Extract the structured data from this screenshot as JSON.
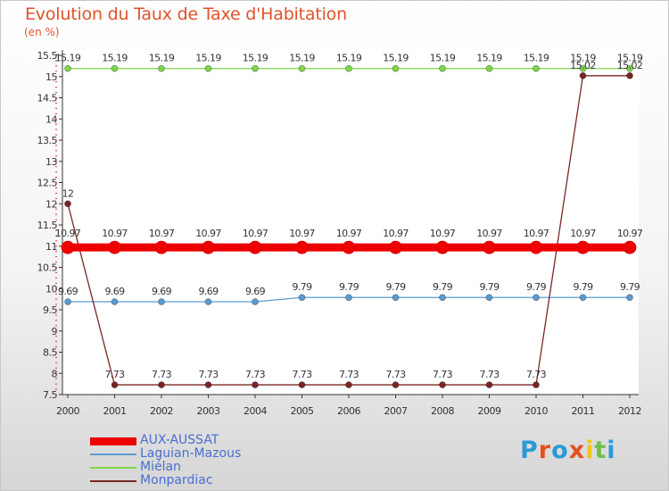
{
  "chart_data": {
    "type": "line",
    "title": "Evolution du Taux de Taxe d'Habitation",
    "subtitle": "(en %)",
    "xlabel": "",
    "ylabel": "",
    "ylim": [
      7.5,
      15.5
    ],
    "yticks": [
      "7.5",
      "8",
      "8.5",
      "9",
      "9.5",
      "10",
      "10.5",
      "11",
      "11.5",
      "12",
      "12.5",
      "13",
      "13.5",
      "14",
      "14.5",
      "15",
      "15.5"
    ],
    "categories": [
      "2000",
      "2001",
      "2002",
      "2003",
      "2004",
      "2005",
      "2006",
      "2007",
      "2008",
      "2009",
      "2010",
      "2011",
      "2012"
    ],
    "series": [
      {
        "name": "AUX-AUSSAT",
        "color": "#ee0000",
        "values": [
          10.97,
          10.97,
          10.97,
          10.97,
          10.97,
          10.97,
          10.97,
          10.97,
          10.97,
          10.97,
          10.97,
          10.97,
          10.97
        ],
        "labels": [
          "10.97",
          "10.97",
          "10.97",
          "10.97",
          "10.97",
          "10.97",
          "10.97",
          "10.97",
          "10.97",
          "10.97",
          "10.97",
          "10.97",
          "10.97"
        ]
      },
      {
        "name": "Laguian-Mazous",
        "color": "#5a9bd0",
        "values": [
          9.69,
          9.69,
          9.69,
          9.69,
          9.69,
          9.79,
          9.79,
          9.79,
          9.79,
          9.79,
          9.79,
          9.79,
          9.79
        ],
        "labels": [
          "9.69",
          "9.69",
          "9.69",
          "9.69",
          "9.69",
          "9.79",
          "9.79",
          "9.79",
          "9.79",
          "9.79",
          "9.79",
          "9.79",
          "9.79"
        ]
      },
      {
        "name": "Miélan",
        "color": "#7ed64a",
        "values": [
          15.19,
          15.19,
          15.19,
          15.19,
          15.19,
          15.19,
          15.19,
          15.19,
          15.19,
          15.19,
          15.19,
          15.19,
          15.19
        ],
        "labels": [
          "15.19",
          "15.19",
          "15.19",
          "15.19",
          "15.19",
          "15.19",
          "15.19",
          "15.19",
          "15.19",
          "15.19",
          "15.19",
          "15.19",
          "15.19"
        ]
      },
      {
        "name": "Monpardiac",
        "color": "#7a2525",
        "values": [
          12,
          7.73,
          7.73,
          7.73,
          7.73,
          7.73,
          7.73,
          7.73,
          7.73,
          7.73,
          7.73,
          15.02,
          15.02
        ],
        "labels": [
          "12",
          "7.73",
          "7.73",
          "7.73",
          "7.73",
          "7.73",
          "7.73",
          "7.73",
          "7.73",
          "7.73",
          "7.73",
          "15.02",
          "15.02"
        ]
      }
    ]
  },
  "logo": {
    "text": "Proxiti",
    "letters": [
      "P",
      "r",
      "o",
      "x",
      "i",
      "t",
      "i"
    ],
    "colors": [
      "#2a9ad6",
      "#e6501e",
      "#2a9ad6",
      "#e6501e",
      "#f0c419",
      "#6cc04a",
      "#2a9ad6"
    ]
  }
}
